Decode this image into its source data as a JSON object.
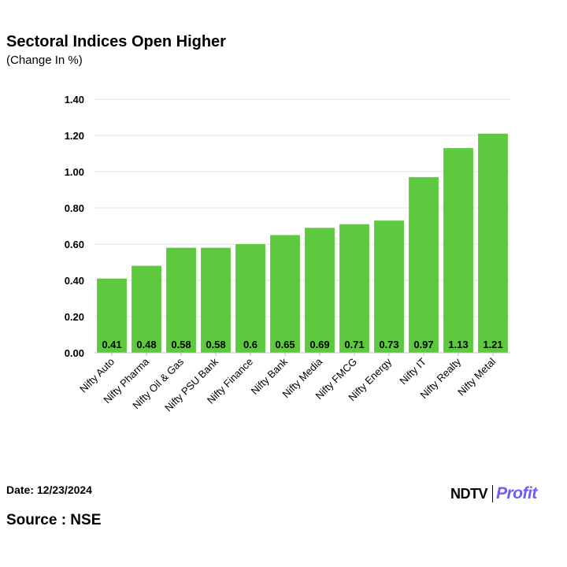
{
  "header": {
    "title": "Sectoral Indices Open Higher",
    "subtitle": "(Change In %)"
  },
  "footer": {
    "date": "Date: 12/23/2024",
    "source": "Source : NSE"
  },
  "logo": {
    "brand": "NDTV",
    "product": "Profit"
  },
  "colors": {
    "bar": "#5dc93f",
    "grid": "#e3e3e3",
    "axis": "#bfbfbf",
    "text": "#000000",
    "profit": "#6a5cff"
  },
  "chart_data": {
    "type": "bar",
    "title": "Sectoral Indices Open Higher",
    "subtitle": "(Change In %)",
    "xlabel": "",
    "ylabel": "",
    "categories": [
      "Nifty Auto",
      "Nifty Pharma",
      "Nifty Oil & Gas",
      "Nifty PSU Bank",
      "Nifty Finance",
      "Nifty Bank",
      "Nifty Media",
      "Nifty FMCG",
      "Nifty Energy",
      "Nifty IT",
      "Nifty Realty",
      "Nifty Metal"
    ],
    "values": [
      0.41,
      0.48,
      0.58,
      0.58,
      0.6,
      0.65,
      0.69,
      0.71,
      0.73,
      0.97,
      1.13,
      1.21
    ],
    "value_labels": [
      "0.41",
      "0.48",
      "0.58",
      "0.58",
      "0.6",
      "0.65",
      "0.69",
      "0.71",
      "0.73",
      "0.97",
      "1.13",
      "1.21"
    ],
    "ylim": [
      0,
      1.4
    ],
    "yticks": [
      0,
      0.2,
      0.4,
      0.6,
      0.8,
      1.0,
      1.2,
      1.4
    ],
    "ytick_labels": [
      "0.00",
      "0.20",
      "0.40",
      "0.60",
      "0.80",
      "1.00",
      "1.20",
      "1.40"
    ],
    "grid": true,
    "legend": "none"
  }
}
